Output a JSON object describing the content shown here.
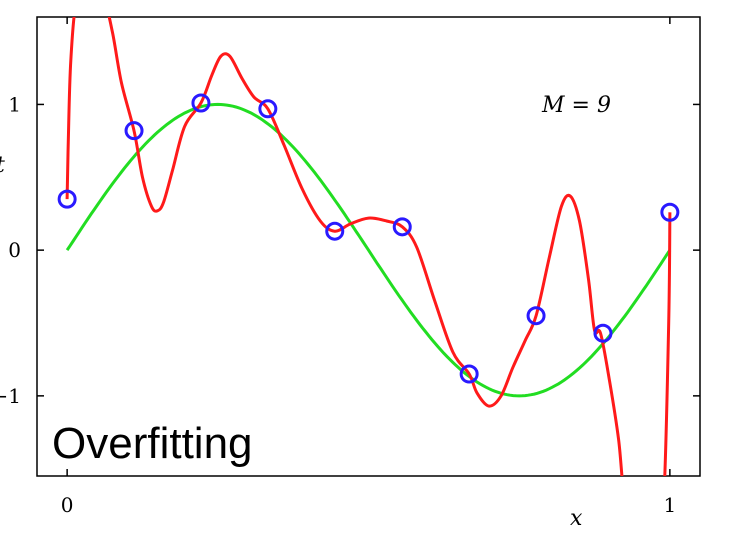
{
  "chart_data": {
    "type": "line",
    "xlabel": "x",
    "ylabel": "t",
    "xlim": [
      -0.05,
      1.05
    ],
    "ylim": [
      -1.55,
      1.6
    ],
    "x_ticks": [
      0,
      1
    ],
    "x_tick_labels": [
      "0",
      "1"
    ],
    "y_ticks": [
      -1,
      0,
      1
    ],
    "y_tick_labels": [
      "−1",
      "0",
      "1"
    ],
    "annotation": "M = 9",
    "overlay_text": "Overfitting",
    "grid": false,
    "colors": {
      "fit": "#ff1a1a",
      "true": "#22dd22",
      "points": "#2a1aff"
    },
    "points": {
      "x": [
        0.0,
        0.111,
        0.222,
        0.333,
        0.444,
        0.556,
        0.667,
        0.778,
        0.889,
        1.0
      ],
      "y": [
        0.35,
        0.82,
        1.01,
        0.97,
        0.13,
        0.16,
        -0.85,
        -0.45,
        -0.57,
        0.26
      ]
    },
    "true_curve": {
      "function": "sin(2*pi*x)",
      "x": [
        0,
        0.05,
        0.1,
        0.15,
        0.2,
        0.25,
        0.3,
        0.35,
        0.4,
        0.45,
        0.5,
        0.55,
        0.6,
        0.65,
        0.7,
        0.75,
        0.8,
        0.85,
        0.9,
        0.95,
        1.0
      ],
      "y": [
        0,
        0.309,
        0.588,
        0.809,
        0.951,
        1.0,
        0.951,
        0.809,
        0.588,
        0.309,
        0,
        -0.309,
        -0.588,
        -0.809,
        -0.951,
        -1.0,
        -0.951,
        -0.809,
        -0.588,
        -0.309,
        0
      ]
    },
    "fit_curve": {
      "x": [
        0.0,
        0.002,
        0.006,
        0.015,
        0.03,
        0.045,
        0.062,
        0.075,
        0.09,
        0.111,
        0.125,
        0.14,
        0.15,
        0.16,
        0.175,
        0.195,
        0.222,
        0.24,
        0.255,
        0.27,
        0.29,
        0.31,
        0.333,
        0.36,
        0.39,
        0.42,
        0.444,
        0.47,
        0.5,
        0.53,
        0.556,
        0.58,
        0.61,
        0.64,
        0.667,
        0.68,
        0.7,
        0.72,
        0.74,
        0.76,
        0.778,
        0.8,
        0.82,
        0.835,
        0.85,
        0.865,
        0.875,
        0.885,
        0.9,
        0.915,
        0.925,
        0.94,
        0.96,
        0.98,
        0.99,
        0.998,
        1.0
      ],
      "y": [
        0.35,
        0.75,
        1.3,
        1.7,
        1.7,
        1.7,
        1.7,
        1.5,
        1.15,
        0.82,
        0.5,
        0.3,
        0.27,
        0.33,
        0.55,
        0.85,
        1.01,
        1.2,
        1.33,
        1.33,
        1.18,
        1.05,
        0.97,
        0.72,
        0.42,
        0.2,
        0.13,
        0.18,
        0.22,
        0.2,
        0.16,
        0.02,
        -0.35,
        -0.7,
        -0.85,
        -0.98,
        -1.07,
        -1.0,
        -0.8,
        -0.62,
        -0.45,
        -0.05,
        0.3,
        0.37,
        0.2,
        -0.2,
        -0.55,
        -0.57,
        -0.9,
        -1.3,
        -1.7,
        -1.7,
        -1.7,
        -1.7,
        -1.7,
        -0.5,
        0.26
      ]
    }
  }
}
